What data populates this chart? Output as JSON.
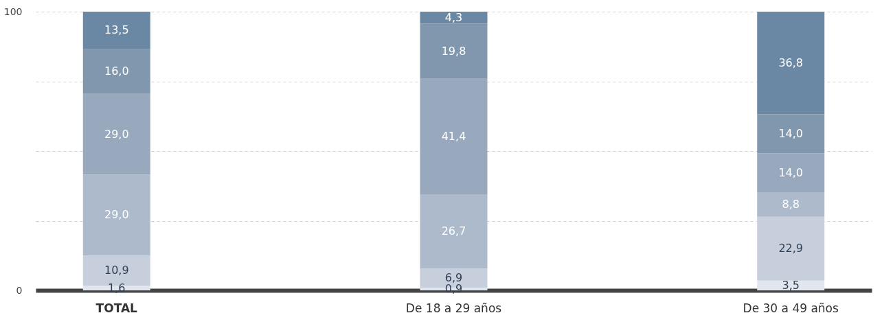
{
  "chart_data": {
    "type": "bar",
    "stacked": true,
    "categories": [
      "TOTAL",
      "De 18 a 29 años",
      "De 30 a 49 años"
    ],
    "series": [
      {
        "color": "#e2e6ee",
        "values": [
          1.6,
          0.9,
          3.5
        ],
        "value_labels": [
          "1,6",
          "0,9",
          "3,5"
        ]
      },
      {
        "color": "#c8cfdc",
        "values": [
          10.9,
          6.9,
          22.9
        ],
        "value_labels": [
          "10,9",
          "6,9",
          "22,9"
        ]
      },
      {
        "color": "#adbacb",
        "values": [
          29.0,
          26.7,
          8.8
        ],
        "value_labels": [
          "29,0",
          "26,7",
          "8,8"
        ]
      },
      {
        "color": "#98a9bd",
        "values": [
          29.0,
          41.4,
          14.0
        ],
        "value_labels": [
          "29,0",
          "41,4",
          "14,0"
        ]
      },
      {
        "color": "#8197ae",
        "values": [
          16.0,
          19.8,
          14.0
        ],
        "value_labels": [
          "16,0",
          "19,8",
          "14,0"
        ]
      },
      {
        "color": "#6a87a3",
        "values": [
          13.5,
          4.3,
          36.8
        ],
        "value_labels": [
          "13,5",
          "4,3",
          "36,8"
        ]
      }
    ],
    "ylim": [
      0,
      100
    ],
    "yticks": [
      0,
      {
        "value": 25,
        "label": null
      },
      {
        "value": 50,
        "label": null
      },
      {
        "value": 75,
        "label": null
      },
      100
    ],
    "grid": "y",
    "legend": false
  }
}
